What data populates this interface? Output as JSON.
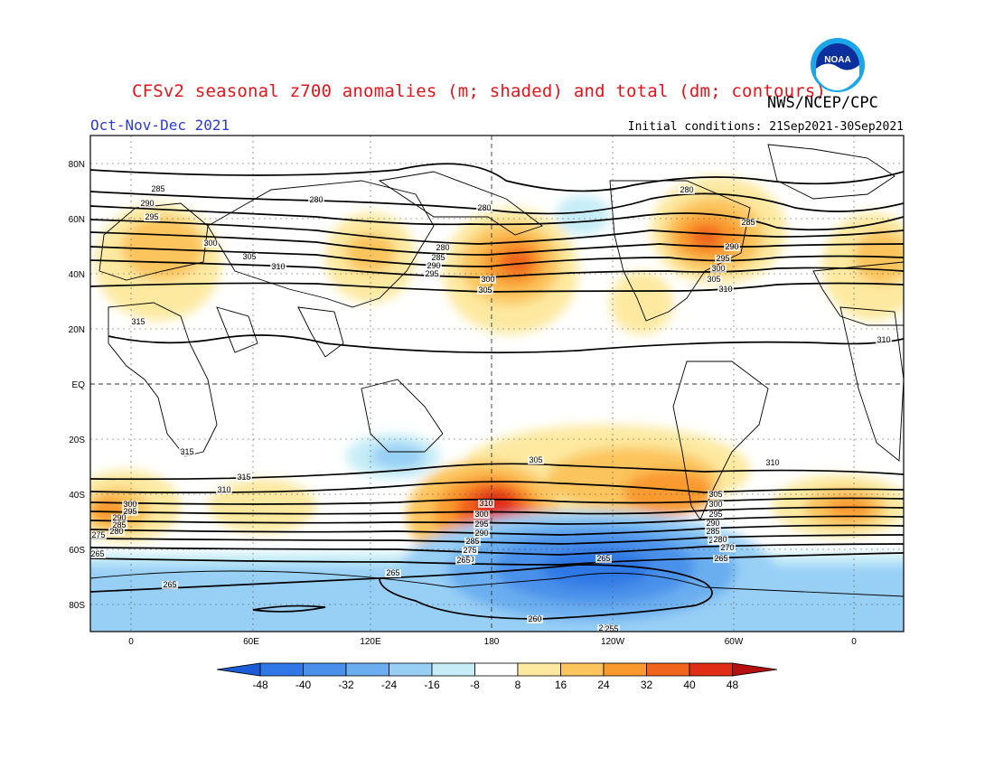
{
  "header": {
    "title": "CFSv2 seasonal z700 anomalies (m; shaded) and total (dm; contours)",
    "agency": "NWS/NCEP/CPC",
    "period": "Oct-Nov-Dec 2021",
    "initial_conditions": "Initial conditions: 21Sep2021-30Sep2021",
    "logo_text": "NOAA"
  },
  "map": {
    "lat_labels": [
      "80N",
      "60N",
      "40N",
      "20N",
      "EQ",
      "20S",
      "40S",
      "60S",
      "80S"
    ],
    "lon_labels": [
      "0",
      "60E",
      "120E",
      "180",
      "120W",
      "60W",
      "0"
    ],
    "contour_labels": [
      "285",
      "280",
      "290",
      "295",
      "300",
      "305",
      "310",
      "315",
      "280",
      "280",
      "285",
      "290",
      "295",
      "300",
      "305",
      "310",
      "280",
      "285",
      "290",
      "295",
      "300",
      "305",
      "310",
      "315",
      "315",
      "310",
      "305",
      "310",
      "310",
      "300",
      "295",
      "290",
      "285",
      "280",
      "275",
      "300",
      "295",
      "290",
      "285",
      "280",
      "275",
      "270",
      "265",
      "305",
      "300",
      "295",
      "290",
      "285",
      "280",
      "275",
      "270",
      "265",
      "265",
      "265",
      "265",
      "260",
      "260",
      "255",
      "265"
    ]
  },
  "colorbar": {
    "labels": [
      "-48",
      "-40",
      "-32",
      "-24",
      "-16",
      "-8",
      "8",
      "16",
      "24",
      "32",
      "40",
      "48"
    ],
    "colors": [
      "#1b5bd6",
      "#2f78e5",
      "#4a90ea",
      "#6aaef0",
      "#97cff5",
      "#c6edf7",
      "#ffffff",
      "#fde9a0",
      "#fcc45c",
      "#f99a2e",
      "#f0641e",
      "#e02d16",
      "#b3100f"
    ]
  }
}
